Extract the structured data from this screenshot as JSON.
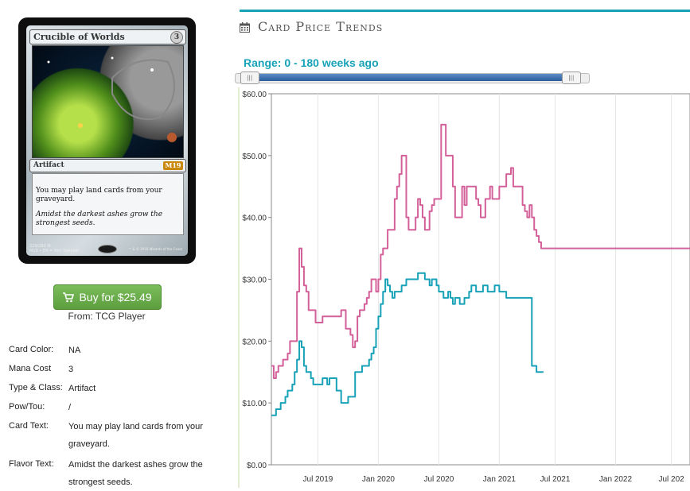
{
  "card": {
    "name": "Crucible of Worlds",
    "mana_symbol": "3",
    "type_line": "Artifact",
    "set_symbol": "M19",
    "rules_text": "You may play land cards from your graveyard.",
    "flavor_text": "Amidst the darkest ashes grow the strongest seeds.",
    "collector": "229/280 M",
    "set_line": "M19 • EN ✒ Ron Spencer",
    "copyright": "™ & © 2018 Wizards of the Coast"
  },
  "buy": {
    "label": "Buy for $25.49",
    "from": "From: TCG Player",
    "accent": "#5d9d3f"
  },
  "details": [
    {
      "label": "Card Color:",
      "value": "NA"
    },
    {
      "label": "Mana Cost",
      "value": "3"
    },
    {
      "label": "Type & Class:",
      "value": "Artifact"
    },
    {
      "label": "Pow/Tou:",
      "value": "/"
    },
    {
      "label": "Card Text:",
      "value": "You may play land cards from your graveyard."
    },
    {
      "label": "Flavor Text:",
      "value": "Amidst the darkest ashes grow the strongest seeds."
    }
  ],
  "panel": {
    "title": "Card Price Trends",
    "icon": "calendar-icon",
    "accent": "#17a2b8"
  },
  "range": {
    "label": "Range: 0 - 180 weeks ago",
    "handle_glyph": "|||",
    "selected_fraction": [
      0.04,
      0.95
    ]
  },
  "chart_data": {
    "type": "line",
    "ylim": [
      0,
      60
    ],
    "xlim": [
      0,
      180
    ],
    "yticks": [
      "$0.00",
      "$10.00",
      "$20.00",
      "$30.00",
      "$40.00",
      "$50.00",
      "$60.00"
    ],
    "xticks": [
      {
        "at": 20,
        "label": "Jul 2019"
      },
      {
        "at": 46,
        "label": "Jan 2020"
      },
      {
        "at": 72,
        "label": "Jul 2020"
      },
      {
        "at": 98,
        "label": "Jan 2021"
      },
      {
        "at": 122,
        "label": "Jul 2021"
      },
      {
        "at": 148,
        "label": "Jan 2022"
      },
      {
        "at": 172,
        "label": "Jul 202"
      }
    ],
    "grid": "vertical",
    "series": [
      {
        "color": "#d4609a",
        "x": [
          0,
          1,
          2,
          3,
          4,
          5,
          6,
          7,
          8,
          9,
          10,
          11,
          12,
          13,
          14,
          15,
          16,
          17,
          18,
          19,
          20,
          21,
          22,
          23,
          24,
          25,
          26,
          27,
          28,
          29,
          30,
          31,
          32,
          33,
          34,
          35,
          36,
          37,
          38,
          39,
          40,
          41,
          42,
          43,
          44,
          45,
          46,
          47,
          48,
          49,
          50,
          51,
          52,
          53,
          54,
          55,
          56,
          57,
          58,
          59,
          60,
          61,
          62,
          63,
          64,
          65,
          66,
          67,
          68,
          69,
          70,
          71,
          72,
          73,
          74,
          75,
          76,
          77,
          78,
          79,
          80,
          81,
          82,
          83,
          84,
          85,
          86,
          87,
          88,
          89,
          90,
          91,
          92,
          93,
          94,
          95,
          96,
          97,
          98,
          99,
          100,
          101,
          102,
          103,
          104,
          105,
          106,
          107,
          108,
          109,
          110,
          111,
          112,
          113,
          114,
          115,
          116,
          117,
          118,
          119,
          120,
          121,
          122,
          123,
          124,
          125,
          126,
          127,
          128,
          129,
          130,
          131,
          132,
          133,
          134,
          135,
          136,
          137,
          138,
          139,
          140,
          141,
          142,
          143,
          144,
          145,
          146,
          147,
          148,
          149,
          150,
          151,
          152,
          153,
          154,
          155,
          156,
          157,
          158,
          159,
          160,
          161,
          162,
          163,
          164,
          165,
          166,
          167,
          168,
          169,
          170,
          171,
          172,
          173,
          174,
          175,
          176,
          177,
          178,
          179,
          180
        ],
        "values": [
          16,
          14,
          15,
          16,
          16,
          17,
          17,
          18,
          20,
          20,
          20,
          28,
          35,
          32,
          29,
          28,
          25,
          25,
          25,
          23,
          23,
          23,
          24,
          24,
          24,
          24,
          24,
          24,
          24,
          24,
          25,
          25,
          22,
          22,
          21,
          19,
          20,
          24,
          25,
          25,
          26,
          27,
          28,
          30,
          30,
          28,
          30,
          34,
          35,
          35,
          38,
          38,
          38,
          43,
          45,
          47,
          50,
          50,
          40,
          38,
          38,
          38,
          40,
          43,
          42,
          40,
          38,
          38,
          41,
          42,
          43,
          43,
          43,
          55,
          55,
          50,
          50,
          50,
          45,
          40,
          40,
          40,
          45,
          42,
          45,
          45,
          45,
          45,
          43,
          42,
          40,
          40,
          43,
          43,
          45,
          43,
          43,
          43,
          45,
          45,
          45,
          47,
          47,
          48,
          45,
          45,
          45,
          45,
          42,
          41,
          40,
          42,
          40,
          38,
          37,
          36,
          35,
          35,
          35,
          35,
          35,
          35,
          35,
          35,
          35,
          35,
          35,
          35,
          35,
          35,
          35,
          35,
          35,
          35,
          35,
          35,
          35,
          35,
          35,
          35,
          35,
          35,
          35,
          35,
          35,
          35,
          35,
          35,
          35,
          35,
          35,
          35,
          35,
          35,
          35,
          35,
          35,
          35,
          35,
          35,
          35,
          35,
          35,
          35,
          35,
          35,
          35,
          35,
          35,
          35,
          35,
          35,
          35,
          35,
          35,
          35,
          35,
          35,
          35,
          35,
          35
        ]
      },
      {
        "color": "#17a2b8",
        "x": [
          0,
          1,
          2,
          3,
          4,
          5,
          6,
          7,
          8,
          9,
          10,
          11,
          12,
          13,
          14,
          15,
          16,
          17,
          18,
          19,
          20,
          21,
          22,
          23,
          24,
          25,
          26,
          27,
          28,
          29,
          30,
          31,
          32,
          33,
          34,
          35,
          36,
          37,
          38,
          39,
          40,
          41,
          42,
          43,
          44,
          45,
          46,
          47,
          48,
          49,
          50,
          51,
          52,
          53,
          54,
          55,
          56,
          57,
          58,
          59,
          60,
          61,
          62,
          63,
          64,
          65,
          66,
          67,
          68,
          69,
          70,
          71,
          72,
          73,
          74,
          75,
          76,
          77,
          78,
          79,
          80,
          81,
          82,
          83,
          84,
          85,
          86,
          87,
          88,
          89,
          90,
          91,
          92,
          93,
          94,
          95,
          96,
          97,
          98,
          99,
          100,
          101,
          102,
          103,
          104,
          105,
          106,
          107,
          108,
          109,
          110,
          111,
          112,
          113,
          114,
          115,
          116,
          117
        ],
        "values": [
          8,
          8,
          9,
          9,
          10,
          10,
          11,
          12,
          12,
          13,
          15,
          17,
          20,
          19,
          16,
          15,
          15,
          14,
          13,
          13,
          13,
          13,
          14,
          14,
          13,
          14,
          14,
          14,
          12,
          12,
          10,
          10,
          10,
          11,
          11,
          11,
          15,
          15,
          15,
          16,
          16,
          16,
          17,
          18,
          19,
          22,
          24,
          26,
          28,
          30,
          29,
          28,
          27,
          28,
          28,
          28,
          29,
          29,
          30,
          30,
          30,
          30,
          30,
          31,
          31,
          31,
          30,
          30,
          29,
          30,
          30,
          29,
          28,
          28,
          27,
          27,
          28,
          27,
          26,
          27,
          27,
          26,
          26,
          27,
          27,
          28,
          29,
          29,
          28,
          28,
          28,
          29,
          29,
          28,
          28,
          28,
          29,
          29,
          28,
          28,
          28,
          27,
          27,
          27,
          27,
          27,
          27,
          27,
          27,
          27,
          27,
          27,
          16,
          16,
          15,
          15,
          15,
          15
        ]
      }
    ]
  }
}
